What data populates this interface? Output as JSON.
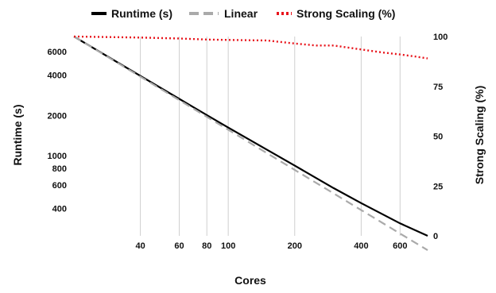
{
  "chart_data": {
    "type": "line",
    "xlabel": "Cores",
    "ylabel_left": "Runtime (s)",
    "ylabel_right": "Strong Scaling (%)",
    "x_scale": "log",
    "y_left_scale": "log",
    "x_ticks": [
      40,
      60,
      80,
      100,
      200,
      400,
      600
    ],
    "y_left_ticks": [
      400,
      600,
      800,
      1000,
      2000,
      4000,
      6000
    ],
    "y_right_ticks": [
      0,
      25,
      50,
      75,
      100
    ],
    "xlim": [
      20,
      800
    ],
    "y_left_lim": [
      250,
      7800
    ],
    "y_right_lim": [
      0,
      100
    ],
    "grid": "vertical",
    "legend_position": "top",
    "series": [
      {
        "name": "Runtime (s)",
        "axis": "left",
        "style": "solid",
        "color": "#000000",
        "x": [
          20,
          40,
          60,
          80,
          100,
          200,
          300,
          400,
          600,
          800
        ],
        "y": [
          7800,
          3950,
          2660,
          2010,
          1620,
          840,
          570,
          440,
          310,
          250
        ]
      },
      {
        "name": "Linear",
        "axis": "left",
        "style": "dashed",
        "color": "#aaaaaa",
        "x": [
          20,
          800
        ],
        "y": [
          7800,
          195
        ]
      },
      {
        "name": "Strong Scaling (%)",
        "axis": "right",
        "style": "dotted",
        "color": "#e8141b",
        "x": [
          20,
          40,
          60,
          80,
          100,
          150,
          200,
          250,
          300,
          400,
          500,
          600,
          700,
          800
        ],
        "y": [
          100,
          99.5,
          99,
          98.5,
          98.3,
          98,
          96.5,
          95.5,
          95.5,
          93.5,
          92,
          91,
          90,
          89
        ]
      }
    ]
  }
}
